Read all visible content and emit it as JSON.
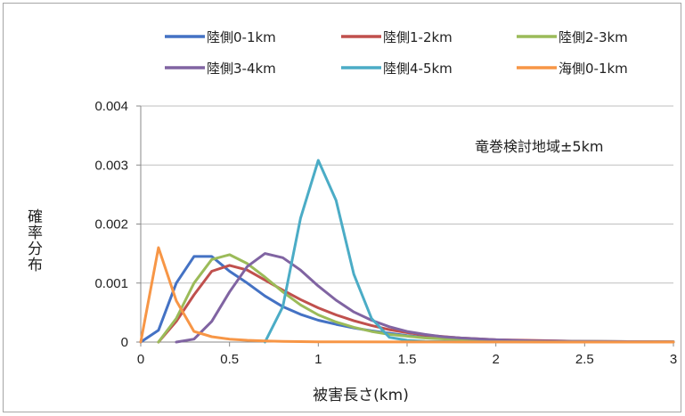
{
  "chart_data": {
    "type": "line",
    "title": "",
    "xlabel": "被害長さ(km)",
    "ylabel": "確率分布",
    "xlim": [
      0,
      3
    ],
    "ylim": [
      0,
      0.004
    ],
    "x_ticks": [
      "0",
      "0.5",
      "1",
      "1.5",
      "2",
      "2.5",
      "3"
    ],
    "y_ticks": [
      "0",
      "0.001",
      "0.002",
      "0.003",
      "0.004"
    ],
    "grid": "horizontal",
    "legend_position": "top",
    "annotation": "竜巻検討地域±5km",
    "series": [
      {
        "name": "陸側0-1km",
        "color": "#4472c4",
        "x": [
          0,
          0.1,
          0.2,
          0.3,
          0.4,
          0.5,
          0.6,
          0.7,
          0.8,
          0.9,
          1.0,
          1.1,
          1.2,
          1.3,
          1.4,
          1.5,
          1.6,
          1.8,
          2.0,
          2.5,
          3.0
        ],
        "y": [
          0,
          0.0002,
          0.001,
          0.00145,
          0.00145,
          0.0012,
          0.001,
          0.00078,
          0.0006,
          0.00047,
          0.00037,
          0.0003,
          0.00024,
          0.00019,
          0.00015,
          0.00011,
          8e-05,
          5e-05,
          3e-05,
          1e-05,
          4e-06
        ]
      },
      {
        "name": "陸側1-2km",
        "color": "#c0504d",
        "x": [
          0.1,
          0.2,
          0.3,
          0.4,
          0.5,
          0.6,
          0.7,
          0.8,
          0.9,
          1.0,
          1.1,
          1.2,
          1.3,
          1.4,
          1.5,
          1.6,
          1.8,
          2.0,
          2.5,
          3.0
        ],
        "y": [
          0,
          0.00035,
          0.0008,
          0.0012,
          0.0013,
          0.00122,
          0.00105,
          0.00088,
          0.00072,
          0.00058,
          0.00046,
          0.00036,
          0.00028,
          0.00021,
          0.00016,
          0.00012,
          7e-05,
          4e-05,
          1e-05,
          4e-06
        ]
      },
      {
        "name": "陸側2-3km",
        "color": "#9bbb59",
        "x": [
          0.1,
          0.2,
          0.3,
          0.4,
          0.5,
          0.6,
          0.7,
          0.8,
          0.9,
          1.0,
          1.1,
          1.2,
          1.3,
          1.4,
          1.5,
          1.6,
          1.8,
          2.0,
          2.5,
          3.0
        ],
        "y": [
          0,
          0.0004,
          0.001,
          0.0014,
          0.00148,
          0.00133,
          0.0011,
          0.00085,
          0.00063,
          0.00046,
          0.00034,
          0.00025,
          0.00018,
          0.00013,
          0.0001,
          7e-05,
          4e-05,
          2e-05,
          1e-05,
          3e-06
        ]
      },
      {
        "name": "陸側3-4km",
        "color": "#8064a2",
        "x": [
          0.2,
          0.3,
          0.4,
          0.5,
          0.6,
          0.7,
          0.8,
          0.9,
          1.0,
          1.1,
          1.2,
          1.3,
          1.4,
          1.5,
          1.6,
          1.7,
          1.8,
          2.0,
          2.2,
          2.5,
          3.0
        ],
        "y": [
          0,
          5e-05,
          0.00035,
          0.00085,
          0.00128,
          0.0015,
          0.00143,
          0.00122,
          0.00095,
          0.00071,
          0.00051,
          0.00037,
          0.00026,
          0.00018,
          0.00013,
          9e-05,
          7e-05,
          4e-05,
          2e-05,
          1e-05,
          3e-06
        ]
      },
      {
        "name": "陸側4-5km",
        "color": "#4bacc6",
        "x": [
          0.7,
          0.8,
          0.9,
          1.0,
          1.1,
          1.2,
          1.3,
          1.4,
          1.5,
          1.6,
          1.8,
          2.0,
          2.5,
          3.0
        ],
        "y": [
          0,
          0.0006,
          0.0021,
          0.00308,
          0.0024,
          0.00115,
          0.0004,
          8e-05,
          3e-05,
          1e-05,
          5e-06,
          3e-06,
          1e-06,
          0
        ]
      },
      {
        "name": "海側0-1km",
        "color": "#f79646",
        "x": [
          0,
          0.1,
          0.2,
          0.3,
          0.4,
          0.5,
          0.6,
          0.7,
          0.8,
          1.0,
          1.5,
          2.0,
          3.0
        ],
        "y": [
          0,
          0.0016,
          0.0007,
          0.00018,
          9e-05,
          5e-05,
          3e-05,
          2e-05,
          1e-05,
          5e-06,
          2e-06,
          1e-06,
          0
        ]
      }
    ]
  }
}
